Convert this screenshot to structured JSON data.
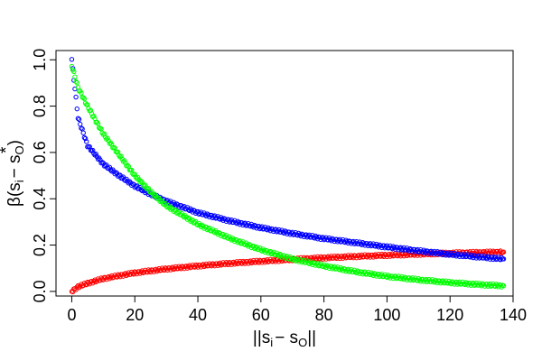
{
  "chart_data": {
    "type": "scatter",
    "title": "",
    "xlabel": "||s_i − s_O||",
    "ylabel": "β(s_i − s_O)",
    "xlim": [
      -5,
      140
    ],
    "ylim": [
      -0.02,
      1.04
    ],
    "xticks": [
      "0",
      "20",
      "40",
      "60",
      "80",
      "100",
      "120",
      "140"
    ],
    "yticks": [
      "0.0",
      "0.2",
      "0.4",
      "0.6",
      "0.8",
      "1.0"
    ],
    "grid": false,
    "legend": "none",
    "marker": "open-circle",
    "series": [
      {
        "color": "#ff0000",
        "points": [
          [
            0,
            0.0
          ],
          [
            2,
            0.02
          ],
          [
            5,
            0.035
          ],
          [
            10,
            0.055
          ],
          [
            15,
            0.068
          ],
          [
            20,
            0.08
          ],
          [
            30,
            0.097
          ],
          [
            40,
            0.11
          ],
          [
            50,
            0.121
          ],
          [
            60,
            0.13
          ],
          [
            70,
            0.138
          ],
          [
            80,
            0.145
          ],
          [
            90,
            0.151
          ],
          [
            100,
            0.156
          ],
          [
            110,
            0.161
          ],
          [
            120,
            0.165
          ],
          [
            130,
            0.168
          ],
          [
            137,
            0.17
          ]
        ]
      },
      {
        "color": "#0000ff",
        "points": [
          [
            0,
            1.0
          ],
          [
            2,
            0.75
          ],
          [
            5,
            0.63
          ],
          [
            10,
            0.55
          ],
          [
            15,
            0.5
          ],
          [
            20,
            0.455
          ],
          [
            25,
            0.42
          ],
          [
            30,
            0.39
          ],
          [
            40,
            0.34
          ],
          [
            50,
            0.305
          ],
          [
            60,
            0.275
          ],
          [
            70,
            0.25
          ],
          [
            80,
            0.228
          ],
          [
            90,
            0.21
          ],
          [
            100,
            0.192
          ],
          [
            110,
            0.175
          ],
          [
            120,
            0.16
          ],
          [
            130,
            0.148
          ],
          [
            137,
            0.14
          ]
        ]
      },
      {
        "color": "#00ff00",
        "points": [
          [
            0,
            0.975
          ],
          [
            2,
            0.88
          ],
          [
            5,
            0.8
          ],
          [
            10,
            0.68
          ],
          [
            15,
            0.59
          ],
          [
            20,
            0.5
          ],
          [
            25,
            0.43
          ],
          [
            30,
            0.37
          ],
          [
            40,
            0.29
          ],
          [
            50,
            0.23
          ],
          [
            60,
            0.18
          ],
          [
            70,
            0.14
          ],
          [
            80,
            0.11
          ],
          [
            90,
            0.085
          ],
          [
            100,
            0.065
          ],
          [
            110,
            0.05
          ],
          [
            120,
            0.038
          ],
          [
            130,
            0.029
          ],
          [
            137,
            0.024
          ]
        ]
      }
    ]
  },
  "axes_text": {
    "ylabel_main": "β(s",
    "ylabel_sub_i": "i",
    "ylabel_minus": "− s",
    "ylabel_sub_o": "O",
    "ylabel_close": ")",
    "ylabel_star": "*",
    "xlabel_open": "||s",
    "xlabel_sub_i": "i",
    "xlabel_minus": "− s",
    "xlabel_sub_o": "O",
    "xlabel_close": "||"
  }
}
